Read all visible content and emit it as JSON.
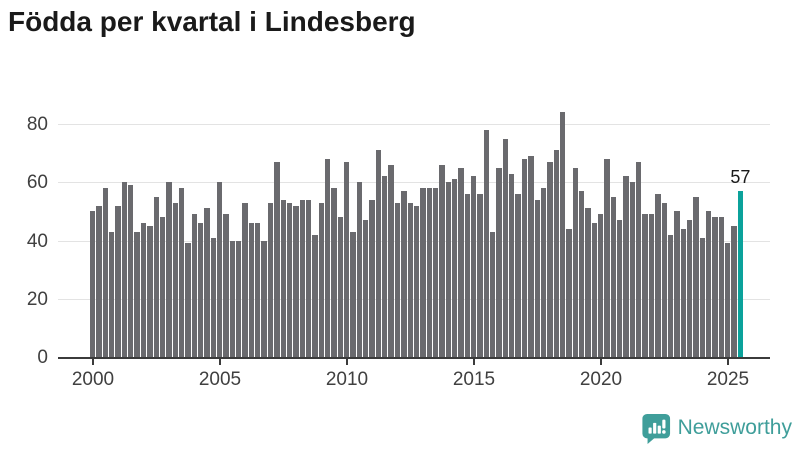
{
  "title": "Födda per kvartal i Lindesberg",
  "annotation": {
    "value_label": "57"
  },
  "branding": {
    "label": "Newsworthy",
    "icon": "newsworthy-bubble-chart-icon"
  },
  "colors": {
    "bar": "#6a6a6e",
    "highlight": "#0ba29b",
    "grid": "#e3e3e3",
    "axis": "#3b3b3b",
    "tick_label": "#404040",
    "title": "#1a1a1a",
    "logo": "#3f9e9a",
    "background": "#ffffff"
  },
  "chart_data": {
    "type": "bar",
    "title": "Födda per kvartal i Lindesberg",
    "xlabel": "",
    "ylabel": "",
    "ylim": [
      0,
      80
    ],
    "y_ticks": [
      0,
      20,
      40,
      60,
      80
    ],
    "x_tick_labels": [
      "2000",
      "2005",
      "2010",
      "2015",
      "2020",
      "2025"
    ],
    "grid": true,
    "legend": false,
    "highlight_last": true,
    "last_label": "57",
    "categories": [
      "2000 Q1",
      "2000 Q2",
      "2000 Q3",
      "2000 Q4",
      "2001 Q1",
      "2001 Q2",
      "2001 Q3",
      "2001 Q4",
      "2002 Q1",
      "2002 Q2",
      "2002 Q3",
      "2002 Q4",
      "2003 Q1",
      "2003 Q2",
      "2003 Q3",
      "2003 Q4",
      "2004 Q1",
      "2004 Q2",
      "2004 Q3",
      "2004 Q4",
      "2005 Q1",
      "2005 Q2",
      "2005 Q3",
      "2005 Q4",
      "2006 Q1",
      "2006 Q2",
      "2006 Q3",
      "2006 Q4",
      "2007 Q1",
      "2007 Q2",
      "2007 Q3",
      "2007 Q4",
      "2008 Q1",
      "2008 Q2",
      "2008 Q3",
      "2008 Q4",
      "2009 Q1",
      "2009 Q2",
      "2009 Q3",
      "2009 Q4",
      "2010 Q1",
      "2010 Q2",
      "2010 Q3",
      "2010 Q4",
      "2011 Q1",
      "2011 Q2",
      "2011 Q3",
      "2011 Q4",
      "2012 Q1",
      "2012 Q2",
      "2012 Q3",
      "2012 Q4",
      "2013 Q1",
      "2013 Q2",
      "2013 Q3",
      "2013 Q4",
      "2014 Q1",
      "2014 Q2",
      "2014 Q3",
      "2014 Q4",
      "2015 Q1",
      "2015 Q2",
      "2015 Q3",
      "2015 Q4",
      "2016 Q1",
      "2016 Q2",
      "2016 Q3",
      "2016 Q4",
      "2017 Q1",
      "2017 Q2",
      "2017 Q3",
      "2017 Q4",
      "2018 Q1",
      "2018 Q2",
      "2018 Q3",
      "2018 Q4",
      "2019 Q1",
      "2019 Q2",
      "2019 Q3",
      "2019 Q4",
      "2020 Q1",
      "2020 Q2",
      "2020 Q3",
      "2020 Q4",
      "2021 Q1",
      "2021 Q2",
      "2021 Q3",
      "2021 Q4",
      "2022 Q1",
      "2022 Q2",
      "2022 Q3",
      "2022 Q4",
      "2023 Q1",
      "2023 Q2",
      "2023 Q3",
      "2023 Q4",
      "2024 Q1",
      "2024 Q2",
      "2024 Q3",
      "2024 Q4",
      "2025 Q1",
      "2025 Q2",
      "2025 Q3"
    ],
    "series": [
      {
        "name": "Födda",
        "values": [
          50,
          52,
          58,
          43,
          52,
          60,
          59,
          43,
          46,
          45,
          55,
          48,
          60,
          53,
          58,
          39,
          49,
          46,
          51,
          41,
          60,
          49,
          40,
          40,
          53,
          46,
          46,
          40,
          53,
          67,
          54,
          53,
          52,
          54,
          54,
          42,
          53,
          68,
          58,
          48,
          67,
          43,
          60,
          47,
          54,
          71,
          62,
          66,
          53,
          57,
          53,
          52,
          58,
          58,
          58,
          66,
          60,
          61,
          65,
          56,
          62,
          56,
          78,
          43,
          65,
          75,
          63,
          56,
          68,
          69,
          54,
          58,
          67,
          71,
          84,
          44,
          65,
          57,
          51,
          46,
          49,
          68,
          55,
          47,
          62,
          60,
          67,
          49,
          49,
          56,
          53,
          42,
          50,
          44,
          47,
          55,
          41,
          50,
          48,
          48,
          39,
          45,
          57
        ]
      }
    ]
  }
}
